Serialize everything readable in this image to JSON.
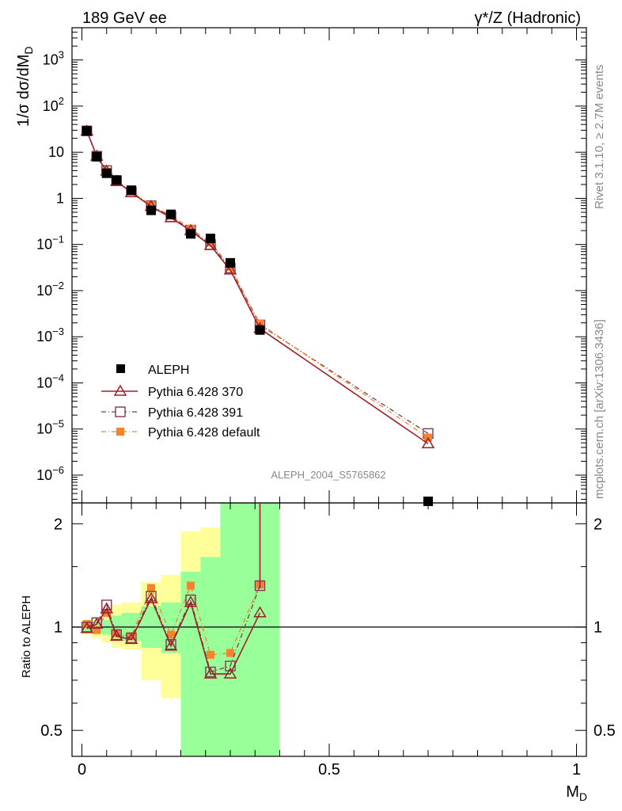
{
  "header": {
    "left_label": "189 GeV ee",
    "right_label": "γ*/Z (Hadronic)"
  },
  "side_labels": {
    "rivet": "Rivet 3.1.10, ≥ 2.7M events",
    "mcplots": "mcplots.cern.ch [arXiv:1306.3436]"
  },
  "watermark": "ALEPH_2004_S5765862",
  "colors": {
    "data": "#000000",
    "pythia370": "#a0202a",
    "pythia391": "#7a3a50",
    "pythia_default": "#f5822e",
    "band_inner": "#99ff99",
    "band_outer": "#ffff99"
  },
  "chart_data": [
    {
      "type": "scatter",
      "panel": "main",
      "ylabel": "1/σ dσ/dM_D",
      "yscale": "log",
      "ylim": [
        2.5e-07,
        5000
      ],
      "xlim": [
        -0.02,
        1.02
      ],
      "ytick_labels": [
        "10^-6",
        "10^-5",
        "10^-4",
        "10^-3",
        "10^-2",
        "10^-1",
        "1",
        "10",
        "10^2",
        "10^3"
      ],
      "legend": {
        "placement": "bottom-left",
        "entries": [
          "ALEPH",
          "Pythia 6.428 370",
          "Pythia 6.428 391",
          "Pythia 6.428 default"
        ]
      },
      "series": [
        {
          "name": "ALEPH",
          "x": [
            0.01,
            0.03,
            0.05,
            0.07,
            0.1,
            0.14,
            0.18,
            0.22,
            0.26,
            0.3,
            0.36,
            0.7
          ],
          "y": [
            29,
            8.0,
            3.5,
            2.5,
            1.5,
            0.55,
            0.45,
            0.17,
            0.135,
            0.04,
            0.0014,
            2.2e-07
          ]
        },
        {
          "name": "Pythia 6.428 370",
          "x": [
            0.01,
            0.03,
            0.05,
            0.07,
            0.1,
            0.14,
            0.18,
            0.22,
            0.26,
            0.3,
            0.36,
            0.7
          ],
          "y": [
            28.7,
            8.2,
            3.9,
            2.35,
            1.33,
            0.67,
            0.38,
            0.2,
            0.095,
            0.028,
            0.0015,
            4.8e-06
          ]
        },
        {
          "name": "Pythia 6.428 391",
          "x": [
            0.01,
            0.03,
            0.05,
            0.07,
            0.1,
            0.14,
            0.18,
            0.22,
            0.26,
            0.3,
            0.36,
            0.7
          ],
          "y": [
            29.0,
            8.2,
            4.0,
            2.4,
            1.38,
            0.69,
            0.4,
            0.205,
            0.1,
            0.031,
            0.0018,
            8e-06
          ]
        },
        {
          "name": "Pythia 6.428 default",
          "x": [
            0.01,
            0.03,
            0.05,
            0.07,
            0.1,
            0.14,
            0.18,
            0.22,
            0.26,
            0.3,
            0.36,
            0.7
          ],
          "y": [
            29.5,
            7.8,
            3.8,
            2.4,
            1.4,
            0.71,
            0.42,
            0.22,
            0.11,
            0.033,
            0.0019,
            6.5e-06
          ]
        }
      ]
    },
    {
      "type": "line",
      "panel": "ratio",
      "ylabel": "Ratio to ALEPH",
      "xlabel": "M_D",
      "yscale": "log",
      "ylim": [
        0.42,
        2.3
      ],
      "xlim": [
        -0.02,
        1.02
      ],
      "xtick_labels": [
        "0",
        "0.5",
        "1"
      ],
      "ytick_labels": [
        "0.5",
        "1",
        "2"
      ],
      "bands": {
        "edges": [
          0.0,
          0.02,
          0.04,
          0.06,
          0.08,
          0.12,
          0.16,
          0.2,
          0.24,
          0.28,
          0.32,
          0.4
        ],
        "inner_lo": [
          0.97,
          0.96,
          0.95,
          0.93,
          0.91,
          0.87,
          0.84,
          0.42,
          0.42,
          0.42,
          0.42
        ],
        "inner_hi": [
          1.03,
          1.04,
          1.05,
          1.08,
          1.1,
          1.15,
          1.18,
          1.45,
          1.6,
          2.5,
          2.5
        ],
        "outer_lo": [
          0.95,
          0.93,
          0.9,
          0.87,
          0.86,
          0.7,
          0.62,
          0.42,
          0.42,
          0.42,
          0.42
        ],
        "outer_hi": [
          1.05,
          1.07,
          1.12,
          1.16,
          1.18,
          1.35,
          1.42,
          1.9,
          1.95,
          2.5,
          2.5
        ]
      },
      "series": [
        {
          "name": "Pythia 6.428 370",
          "x": [
            0.01,
            0.03,
            0.05,
            0.07,
            0.1,
            0.14,
            0.18,
            0.22,
            0.26,
            0.3,
            0.36
          ],
          "y": [
            0.99,
            1.02,
            1.13,
            0.94,
            0.92,
            1.21,
            0.88,
            1.18,
            0.73,
            0.73,
            1.1
          ]
        },
        {
          "name": "Pythia 6.428 391",
          "x": [
            0.01,
            0.03,
            0.05,
            0.07,
            0.1,
            0.14,
            0.18,
            0.22,
            0.26,
            0.3,
            0.36
          ],
          "y": [
            1.0,
            1.03,
            1.16,
            0.95,
            0.93,
            1.23,
            0.89,
            1.2,
            0.74,
            0.77,
            1.32
          ]
        },
        {
          "name": "Pythia 6.428 default",
          "x": [
            0.01,
            0.03,
            0.05,
            0.07,
            0.1,
            0.14,
            0.18,
            0.22,
            0.26,
            0.3,
            0.36
          ],
          "y": [
            1.02,
            0.98,
            1.1,
            0.96,
            0.94,
            1.3,
            0.95,
            1.32,
            0.83,
            0.84,
            1.33
          ]
        }
      ]
    }
  ]
}
